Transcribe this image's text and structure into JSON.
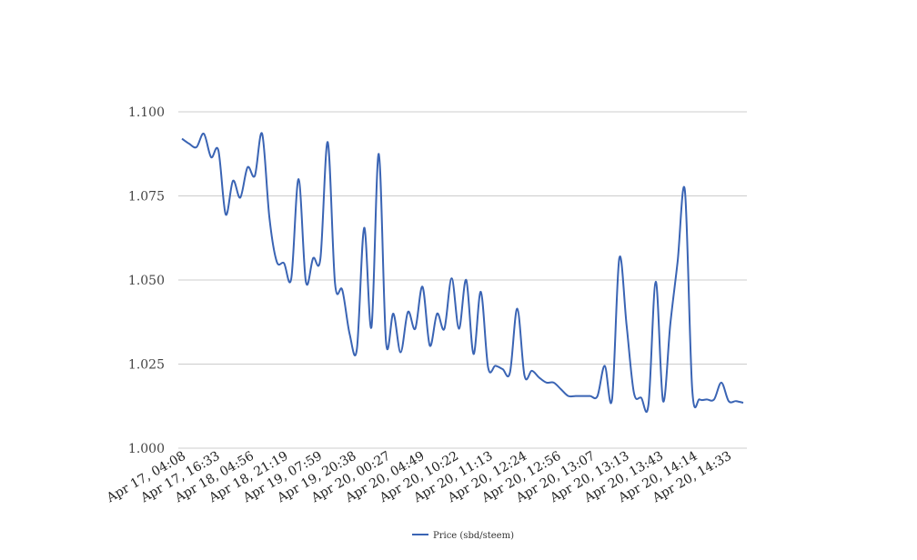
{
  "chart_data": {
    "type": "line",
    "title": "",
    "xlabel": "",
    "ylabel": "",
    "ylim": [
      1.0,
      1.1
    ],
    "yticks": [
      "1.000",
      "1.025",
      "1.050",
      "1.075",
      "1.100"
    ],
    "grid": "horizontal",
    "legend_placement": "bottom-center",
    "colors": {
      "series": "#3a64b4",
      "grid": "#cccccc"
    },
    "x_tick_labels": [
      "Apr 17, 04:08",
      "Apr 17, 16:33",
      "Apr 18, 04:56",
      "Apr 18, 21:19",
      "Apr 19, 07:59",
      "Apr 19, 20:38",
      "Apr 20, 00:27",
      "Apr 20, 04:49",
      "Apr 20, 10:22",
      "Apr 20, 11:13",
      "Apr 20, 12:24",
      "Apr 20, 12:56",
      "Apr 20, 13:07",
      "Apr 20, 13:13",
      "Apr 20, 13:43",
      "Apr 20, 14:14",
      "Apr 20, 14:33"
    ],
    "series": [
      {
        "name": "Price (sbd/steem)",
        "values": [
          1.092,
          1.0905,
          1.0895,
          1.0935,
          1.0865,
          1.0885,
          1.0695,
          1.0795,
          1.0745,
          1.0835,
          1.081,
          1.0935,
          1.0685,
          1.0555,
          1.055,
          1.0505,
          1.08,
          1.0495,
          1.0565,
          1.0565,
          1.091,
          1.049,
          1.047,
          1.034,
          1.0295,
          1.0655,
          1.036,
          1.0875,
          1.0315,
          1.04,
          1.0285,
          1.0405,
          1.0355,
          1.048,
          1.0305,
          1.04,
          1.0355,
          1.0505,
          1.0355,
          1.05,
          1.028,
          1.0465,
          1.024,
          1.0245,
          1.0235,
          1.0225,
          1.0415,
          1.0215,
          1.023,
          1.021,
          1.0195,
          1.0195,
          1.0175,
          1.0155,
          1.0155,
          1.0155,
          1.0155,
          1.0155,
          1.0245,
          1.0145,
          1.0565,
          1.0365,
          1.0165,
          1.015,
          1.013,
          1.0495,
          1.014,
          1.037,
          1.0555,
          1.0765,
          1.0175,
          1.0145,
          1.0145,
          1.0145,
          1.0195,
          1.014,
          1.014,
          1.0135
        ]
      }
    ]
  }
}
